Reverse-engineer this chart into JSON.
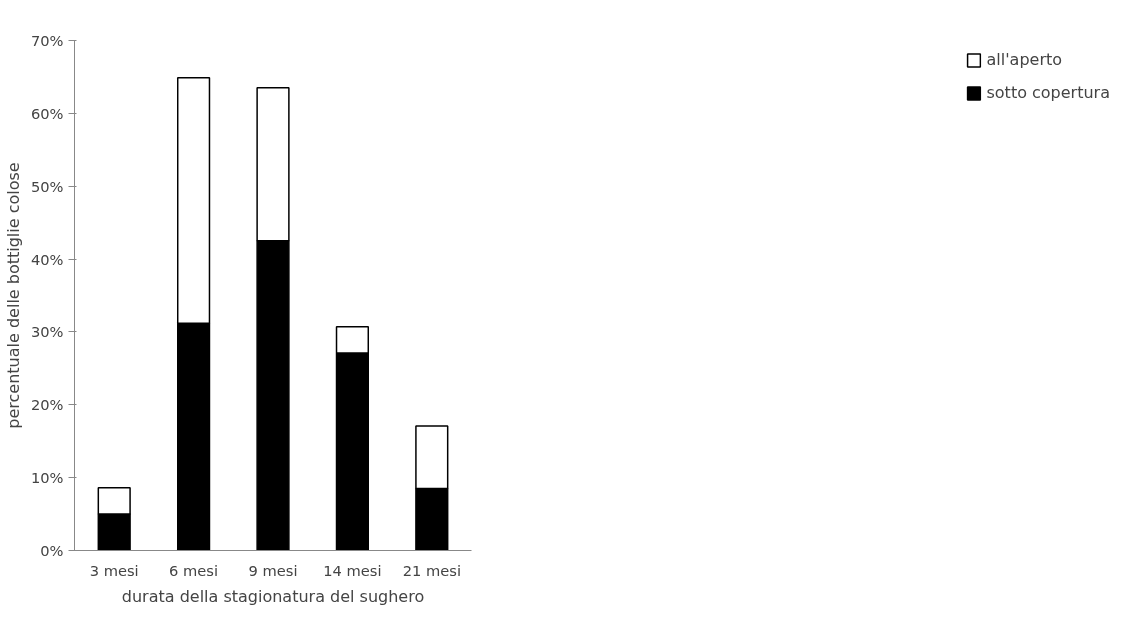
{
  "chart_data": {
    "type": "bar",
    "stacked": true,
    "xlabel": "durata della stagionatura del sughero",
    "ylabel": "percentuale delle bottiglie colose",
    "categories": [
      "3 mesi",
      "6 mesi",
      "9 mesi",
      "14 mesi",
      "21 mesi"
    ],
    "series": [
      {
        "name": "sotto copertura",
        "color": "#000000",
        "values": [
          5.0,
          31.2,
          42.5,
          27.1,
          8.5
        ]
      },
      {
        "name": "all'aperto",
        "color": "#ffffff",
        "values": [
          3.6,
          33.7,
          21.0,
          3.6,
          8.6
        ]
      }
    ],
    "ylim": [
      0,
      70
    ],
    "yticks": [
      {
        "value": 0,
        "label": "0%"
      },
      {
        "value": 10,
        "label": "10%"
      },
      {
        "value": 20,
        "label": "20%"
      },
      {
        "value": 30,
        "label": "30%"
      },
      {
        "value": 40,
        "label": "40%"
      },
      {
        "value": 50,
        "label": "50%"
      },
      {
        "value": 60,
        "label": "60%"
      },
      {
        "value": 70,
        "label": "70%"
      }
    ],
    "grid": false,
    "legend": "right"
  }
}
